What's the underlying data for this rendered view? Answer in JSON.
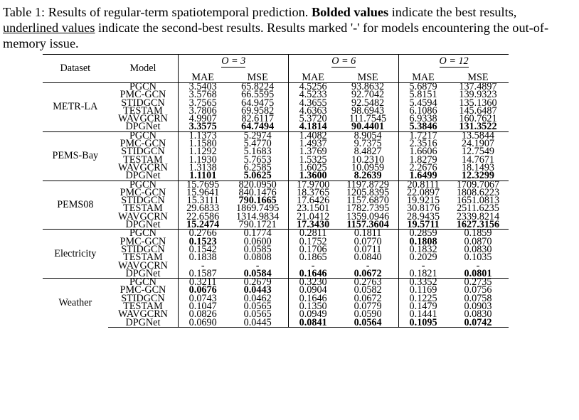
{
  "caption": {
    "label": "Table 1:",
    "text1": " Results of regular-term spatiotemporal prediction. ",
    "bold": "Bolded values",
    "text2": " indicate the best results, ",
    "underlined": "underlined values",
    "text3": " indicate the second-best results. Results marked '-' for models encountering the out-of-memory issue."
  },
  "header": {
    "dataset": "Dataset",
    "model": "Model",
    "groups": [
      "O = 3",
      "O = 6",
      "O = 12"
    ],
    "metrics": [
      "MAE",
      "MSE",
      "MAE",
      "MSE",
      "MAE",
      "MSE"
    ]
  },
  "datasets": [
    {
      "name": "METR-LA",
      "rows": [
        {
          "model": "PGCN",
          "values": [
            "3.5403",
            "65.8224",
            "4.5256",
            "93.8632",
            "5.6879",
            "137.4897"
          ],
          "marks": [
            "",
            "",
            "",
            "",
            "",
            ""
          ]
        },
        {
          "model": "PMC-GCN",
          "values": [
            "3.5768",
            "66.5595",
            "4.5233",
            "92.7042",
            "5.8151",
            "139.9323"
          ],
          "marks": [
            "",
            "",
            "",
            "",
            "",
            ""
          ]
        },
        {
          "model": "STIDGCN",
          "values": [
            "3.7565",
            "64.9475",
            "4.3655",
            "92.5482",
            "5.4594",
            "135.1360"
          ],
          "marks": [
            "",
            "",
            "",
            "",
            "",
            ""
          ]
        },
        {
          "model": "TESTAM",
          "values": [
            "3.7806",
            "69.9582",
            "4.6363",
            "98.6943",
            "6.1086",
            "145.6487"
          ],
          "marks": [
            "",
            "",
            "",
            "",
            "",
            ""
          ]
        },
        {
          "model": "WAVGCRN",
          "values": [
            "4.9907",
            "82.6117",
            "5.3720",
            "111.7545",
            "6.9338",
            "160.7621"
          ],
          "marks": [
            "",
            "",
            "",
            "",
            "",
            ""
          ]
        },
        {
          "model": "DPGNet",
          "values": [
            "3.3575",
            "64.7494",
            "4.1814",
            "90.4401",
            "5.3846",
            "131.3522"
          ],
          "marks": [
            "best",
            "best",
            "best",
            "best",
            "best",
            "best"
          ]
        }
      ]
    },
    {
      "name": "PEMS-Bay",
      "rows": [
        {
          "model": "PGCN",
          "values": [
            "1.1373",
            "5.2974",
            "1.4082",
            "8.9054",
            "1.7217",
            "13.5844"
          ],
          "marks": [
            "",
            "",
            "",
            "",
            "",
            ""
          ]
        },
        {
          "model": "PMC-GCN",
          "values": [
            "1.1580",
            "5.4770",
            "1.4937",
            "9.7375",
            "2.3516",
            "24.1907"
          ],
          "marks": [
            "",
            "",
            "",
            "",
            "",
            ""
          ]
        },
        {
          "model": "STIDGCN",
          "values": [
            "1.1292",
            "5.1683",
            "1.3769",
            "8.4827",
            "1.6606",
            "12.7549"
          ],
          "marks": [
            "",
            "",
            "",
            "",
            "",
            ""
          ]
        },
        {
          "model": "TESTAM",
          "values": [
            "1.1930",
            "5.7653",
            "1.5325",
            "10.2310",
            "1.8279",
            "14.7671"
          ],
          "marks": [
            "",
            "",
            "",
            "",
            "",
            ""
          ]
        },
        {
          "model": "WAVGCRN",
          "values": [
            "1.3138",
            "6.2585",
            "1.6025",
            "10.0959",
            "2.2676",
            "18.1493"
          ],
          "marks": [
            "",
            "",
            "",
            "",
            "",
            ""
          ]
        },
        {
          "model": "DPGNet",
          "values": [
            "1.1101",
            "5.0625",
            "1.3600",
            "8.2639",
            "1.6499",
            "12.3299"
          ],
          "marks": [
            "best",
            "best",
            "best",
            "best",
            "best",
            "best"
          ]
        }
      ]
    },
    {
      "name": "PEMS08",
      "rows": [
        {
          "model": "PGCN",
          "values": [
            "15.7695",
            "820.0950",
            "17.9700",
            "1197.8729",
            "20.8111",
            "1709.7067"
          ],
          "marks": [
            "",
            "",
            "",
            "",
            "",
            ""
          ]
        },
        {
          "model": "PMC-GCN",
          "values": [
            "15.9641",
            "840.1476",
            "18.3765",
            "1205.8395",
            "22.0897",
            "1808.6223"
          ],
          "marks": [
            "",
            "",
            "",
            "",
            "",
            ""
          ]
        },
        {
          "model": "STIDGCN",
          "values": [
            "15.3111",
            "790.1665",
            "17.6426",
            "1157.6870",
            "19.9215",
            "1651.0813"
          ],
          "marks": [
            "",
            "best",
            "",
            "",
            "",
            ""
          ]
        },
        {
          "model": "TESTAM",
          "values": [
            "29.6833",
            "1869.7495",
            "23.1501",
            "1782.7395",
            "30.8176",
            "2511.6235"
          ],
          "marks": [
            "",
            "",
            "",
            "",
            "",
            ""
          ]
        },
        {
          "model": "WAVGCRN",
          "values": [
            "22.6586",
            "1314.9834",
            "21.0412",
            "1359.0946",
            "28.9435",
            "2339.8214"
          ],
          "marks": [
            "",
            "",
            "",
            "",
            "",
            ""
          ]
        },
        {
          "model": "DPGNet",
          "values": [
            "15.2474",
            "790.1721",
            "17.3430",
            "1157.3604",
            "19.5711",
            "1627.3156"
          ],
          "marks": [
            "best",
            "",
            "best",
            "best",
            "best",
            "best"
          ]
        }
      ]
    },
    {
      "name": "Electricity",
      "rows": [
        {
          "model": "PGCN",
          "values": [
            "0.2766",
            "0.1774",
            "0.2811",
            "0.1811",
            "0.2859",
            "0.1859"
          ],
          "marks": [
            "",
            "",
            "",
            "",
            "",
            ""
          ]
        },
        {
          "model": "PMC-GCN",
          "values": [
            "0.1523",
            "0.0600",
            "0.1752",
            "0.0770",
            "0.1808",
            "0.0870"
          ],
          "marks": [
            "best",
            "",
            "",
            "",
            "best",
            ""
          ]
        },
        {
          "model": "STIDGCN",
          "values": [
            "0.1542",
            "0.0585",
            "0.1706",
            "0.0711",
            "0.1832",
            "0.0830"
          ],
          "marks": [
            "",
            "",
            "",
            "",
            "",
            ""
          ]
        },
        {
          "model": "TESTAM",
          "values": [
            "0.1838",
            "0.0808",
            "0.1865",
            "0.0840",
            "0.2029",
            "0.1035"
          ],
          "marks": [
            "",
            "",
            "",
            "",
            "",
            ""
          ]
        },
        {
          "model": "WAVGCRN",
          "values": [
            "-",
            "-",
            "-",
            "-",
            "-",
            "-"
          ],
          "marks": [
            "",
            "",
            "",
            "",
            "",
            ""
          ]
        },
        {
          "model": "DPGNet",
          "values": [
            "0.1587",
            "0.0584",
            "0.1646",
            "0.0672",
            "0.1821",
            "0.0801"
          ],
          "marks": [
            "",
            "best",
            "best",
            "best",
            "",
            "best"
          ]
        }
      ]
    },
    {
      "name": "Weather",
      "rows": [
        {
          "model": "PGCN",
          "values": [
            "0.3211",
            "0.2679",
            "0.3230",
            "0.2763",
            "0.3352",
            "0.2735"
          ],
          "marks": [
            "",
            "",
            "",
            "",
            "",
            ""
          ]
        },
        {
          "model": "PMC-GCN",
          "values": [
            "0.0676",
            "0.0443",
            "0.0904",
            "0.0582",
            "0.1169",
            "0.0756"
          ],
          "marks": [
            "best",
            "best",
            "",
            "",
            "",
            ""
          ]
        },
        {
          "model": "STIDGCN",
          "values": [
            "0.0743",
            "0.0462",
            "0.1646",
            "0.0672",
            "0.1225",
            "0.0758"
          ],
          "marks": [
            "",
            "",
            "",
            "",
            "",
            ""
          ]
        },
        {
          "model": "TESTAM",
          "values": [
            "0.1047",
            "0.0565",
            "0.1350",
            "0.0779",
            "0.1479",
            "0.0903"
          ],
          "marks": [
            "",
            "",
            "",
            "",
            "",
            ""
          ]
        },
        {
          "model": "WAVGCRN",
          "values": [
            "0.0826",
            "0.0565",
            "0.0949",
            "0.0590",
            "0.1441",
            "0.0830"
          ],
          "marks": [
            "",
            "",
            "",
            "",
            "",
            ""
          ]
        },
        {
          "model": "DPGNet",
          "values": [
            "0.0690",
            "0.0445",
            "0.0841",
            "0.0564",
            "0.1095",
            "0.0742"
          ],
          "marks": [
            "",
            "",
            "best",
            "best",
            "best",
            "best"
          ]
        }
      ]
    }
  ]
}
